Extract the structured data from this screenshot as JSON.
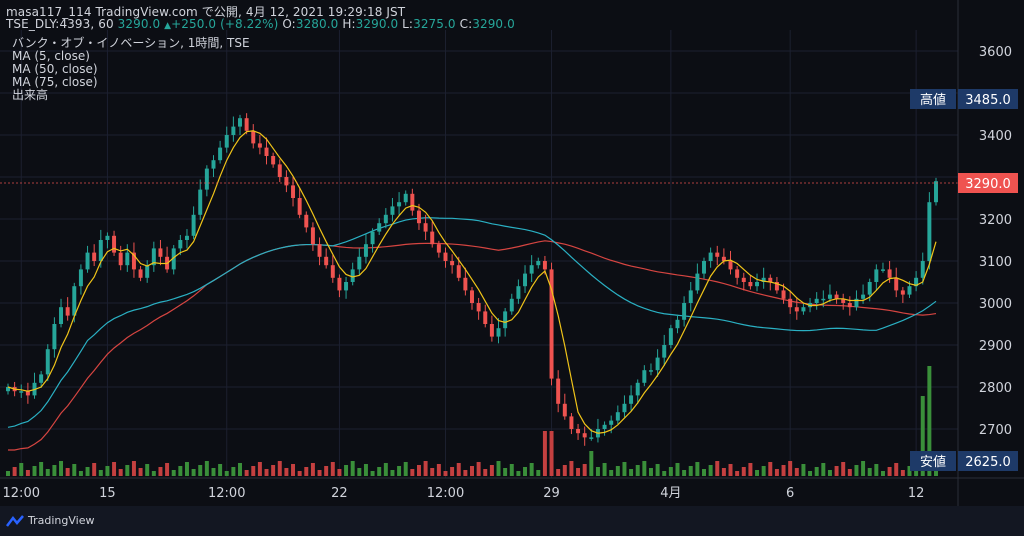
{
  "header": {
    "line1": "masa117_114 TradingView.com で公開, 4月 12, 2021 19:29:18 JST",
    "symbol": "TSE_DLY:4393, 60",
    "last": "3290.0",
    "change": "+250.0 (+8.22%)",
    "o_label": "O:",
    "o": "3280.0",
    "h_label": "H:",
    "h": "3290.0",
    "l_label": "L:",
    "l": "3275.0",
    "c_label": "C:",
    "c": "3290.0",
    "up_arrow": "▲"
  },
  "indicators": [
    "バンク・オブ・イノベーション, 1時間, TSE",
    "MA (5, close)",
    "MA (50, close)",
    "MA (75, close)",
    "出来高"
  ],
  "badges": {
    "high_label": "高値",
    "high_value": "3485.0",
    "low_label": "安値",
    "low_value": "2625.0",
    "last_value": "3290.0"
  },
  "branding": "TradingView",
  "colors": {
    "up": "#26a69a",
    "down": "#ef5350",
    "ma5": "#f0c419",
    "ma50": "#2ab0c3",
    "ma75": "#d64541",
    "vol_up": "#3a8f3a",
    "vol_down": "#c44040"
  },
  "chart_data": {
    "type": "candlestick",
    "y_ticks": [
      2700,
      2800,
      2900,
      3000,
      3100,
      3200,
      3300,
      3400,
      3500,
      3600
    ],
    "y_tick_labels": [
      "2700",
      "2800",
      "2900",
      "3000",
      "3100",
      "3200",
      "",
      "3400",
      "",
      "3600"
    ],
    "ylim": [
      2625,
      3640
    ],
    "x_ticks": [
      {
        "i": 2,
        "label": "12:00"
      },
      {
        "i": 15,
        "label": "15"
      },
      {
        "i": 33,
        "label": "12:00"
      },
      {
        "i": 50,
        "label": "22"
      },
      {
        "i": 66,
        "label": "12:00"
      },
      {
        "i": 82,
        "label": "29"
      },
      {
        "i": 100,
        "label": "4月"
      },
      {
        "i": 118,
        "label": "6"
      },
      {
        "i": 137,
        "label": "12"
      }
    ],
    "n_bars": 141,
    "closes": [
      2800,
      2790,
      2790,
      2780,
      2810,
      2830,
      2890,
      2950,
      2990,
      2970,
      3040,
      3080,
      3120,
      3100,
      3150,
      3160,
      3120,
      3090,
      3120,
      3080,
      3060,
      3090,
      3130,
      3110,
      3080,
      3130,
      3150,
      3160,
      3210,
      3270,
      3320,
      3340,
      3370,
      3400,
      3420,
      3440,
      3410,
      3380,
      3370,
      3350,
      3330,
      3300,
      3280,
      3250,
      3210,
      3180,
      3140,
      3110,
      3090,
      3060,
      3030,
      3050,
      3080,
      3110,
      3140,
      3170,
      3190,
      3210,
      3230,
      3240,
      3260,
      3220,
      3190,
      3170,
      3140,
      3120,
      3100,
      3090,
      3060,
      3030,
      3000,
      2980,
      2950,
      2920,
      2940,
      2980,
      3010,
      3040,
      3070,
      3090,
      3100,
      3080,
      2820,
      2760,
      2730,
      2700,
      2690,
      2680,
      2680,
      2700,
      2710,
      2720,
      2740,
      2760,
      2780,
      2810,
      2840,
      2840,
      2870,
      2900,
      2940,
      2960,
      3000,
      3030,
      3070,
      3100,
      3120,
      3110,
      3100,
      3080,
      3060,
      3050,
      3040,
      3050,
      3060,
      3050,
      3030,
      3010,
      2990,
      2980,
      2990,
      3000,
      3010,
      3010,
      3020,
      3010,
      3000,
      2990,
      3010,
      3020,
      3050,
      3080,
      3080,
      3060,
      3030,
      3020,
      3040,
      3060,
      3100,
      3240,
      3290
    ],
    "ma5_last": 3175,
    "ma50_last": 3045,
    "ma75_last": 2955,
    "volume_max_index": 139
  }
}
